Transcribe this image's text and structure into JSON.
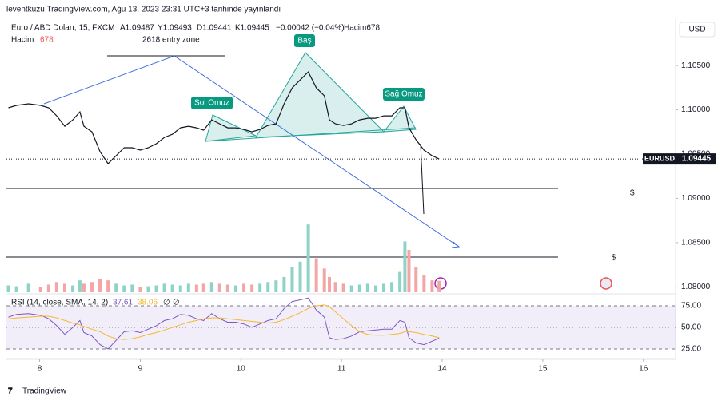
{
  "chart_data": {
    "type": "line",
    "published": "leventkuzu TradingView.com, Ağu 13, 2023 23:31 UTC+3 tarihinde yayınlandı",
    "symbol": "Euro / ABD Doları, 15, FXCM",
    "ohlc": [
      "A1.09487",
      "Y1.09493",
      "D1.09441",
      "K1.09445"
    ],
    "change": "−0.00042 (−0.04%)",
    "volume_header": "Hacim678",
    "volume_name": "Hacim",
    "currency": "USD",
    "ticker": "EURUSD",
    "last_label": "1.09445",
    "annotations": [
      "2618 entry zone",
      "Baş",
      "Sol Omuz",
      "Sağ Omuz",
      "$",
      "$"
    ],
    "logo": "TradingView",
    "xlim": [
      -0.33,
      6.32
    ],
    "xticks": [
      {
        "value": 0,
        "label": "8"
      },
      {
        "value": 1,
        "label": "9"
      },
      {
        "value": 2,
        "label": "10"
      },
      {
        "value": 3,
        "label": "11"
      },
      {
        "value": 4,
        "label": "14"
      },
      {
        "value": 5,
        "label": "15"
      },
      {
        "value": 6,
        "label": "16"
      }
    ],
    "ylim": [
      1.0794,
      1.1097
    ],
    "yticks": [
      {
        "value": 1.08,
        "label": "1.08000"
      },
      {
        "value": 1.085,
        "label": "1.08500"
      },
      {
        "value": 1.09,
        "label": "1.09000"
      },
      {
        "value": 1.095,
        "label": "1.09500"
      },
      {
        "value": 1.1,
        "label": "1.10000"
      },
      {
        "value": 1.105,
        "label": "1.10500"
      }
    ],
    "x": [
      -0.31,
      -0.23,
      -0.11,
      0.01,
      0.09,
      0.17,
      0.25,
      0.33,
      0.4,
      0.44,
      0.52,
      0.6,
      0.68,
      0.76,
      0.84,
      0.92,
      1.0,
      1.08,
      1.16,
      1.24,
      1.32,
      1.4,
      1.48,
      1.56,
      1.63,
      1.71,
      1.79,
      1.87,
      1.95,
      2.03,
      2.11,
      2.19,
      2.27,
      2.35,
      2.43,
      2.51,
      2.59,
      2.67,
      2.75,
      2.83,
      2.88,
      2.94,
      3.02,
      3.1,
      3.18,
      3.26,
      3.34,
      3.42,
      3.5,
      3.58,
      3.63,
      3.67,
      3.74,
      3.82,
      3.9,
      3.97
    ],
    "series": [
      {
        "name": "EURUSD",
        "color": "#131722",
        "values": [
          1.10023,
          1.1005,
          1.10068,
          1.1005,
          1.10023,
          1.09932,
          1.09815,
          1.09887,
          1.09977,
          1.09815,
          1.09752,
          1.09527,
          1.09392,
          1.09482,
          1.09572,
          1.09572,
          1.09545,
          1.09572,
          1.09617,
          1.09689,
          1.09725,
          1.09797,
          1.09815,
          1.09797,
          1.0977,
          1.09887,
          1.09842,
          1.09797,
          1.09797,
          1.09779,
          1.09752,
          1.09779,
          1.09824,
          1.09842,
          1.10068,
          1.10248,
          1.10338,
          1.10428,
          1.10248,
          1.10158,
          1.09887,
          1.09842,
          1.09824,
          1.09842,
          1.09887,
          1.09905,
          1.09905,
          1.09932,
          1.09932,
          1.10023,
          1.10023,
          1.09797,
          1.09662,
          1.09545,
          1.09482,
          1.09445
        ]
      }
    ],
    "volume": {
      "ylim": [
        0,
        5000
      ],
      "up_color": "#8fd3c7",
      "down_color": "#f4a6a6",
      "values": [
        400,
        350,
        500,
        300,
        450,
        600,
        500,
        400,
        700,
        500,
        600,
        800,
        700,
        500,
        400,
        450,
        300,
        350,
        400,
        500,
        450,
        400,
        500,
        450,
        500,
        600,
        500,
        450,
        400,
        500,
        450,
        500,
        600,
        700,
        900,
        1500,
        1800,
        4000,
        2000,
        1400,
        900,
        600,
        500,
        400,
        450,
        500,
        400,
        500,
        600,
        1200,
        3000,
        2500,
        1500,
        1000,
        700,
        678
      ]
    },
    "rsi": {
      "title": "RSI (14, close, SMA, 14, 2)",
      "flags": [
        "∅",
        "∅"
      ],
      "ylim": [
        17.6,
        85.2
      ],
      "yticks": [
        {
          "value": 25,
          "label": "25.00"
        },
        {
          "value": 50,
          "label": "50.00"
        },
        {
          "value": 75,
          "label": "75.00"
        }
      ],
      "series": [
        {
          "name": "RSI",
          "color": "#7e57c2",
          "values": [
            62,
            65,
            66,
            64,
            60,
            52,
            42,
            50,
            58,
            44,
            40,
            30,
            25,
            35,
            45,
            46,
            44,
            48,
            52,
            58,
            60,
            65,
            64,
            60,
            58,
            66,
            60,
            56,
            56,
            54,
            50,
            54,
            58,
            60,
            72,
            80,
            82,
            84,
            70,
            62,
            38,
            36,
            37,
            40,
            45,
            46,
            47,
            48,
            48,
            58,
            56,
            38,
            32,
            30,
            34,
            37.61
          ]
        },
        {
          "name": "SMA",
          "color": "#f5b72e",
          "values": [
            60,
            61,
            62,
            63,
            63,
            61,
            58,
            55,
            53,
            51,
            48,
            45,
            40,
            37,
            36,
            37,
            39,
            42,
            44,
            47,
            50,
            53,
            56,
            58,
            60,
            61,
            61,
            60,
            59,
            58,
            57,
            56,
            55,
            56,
            59,
            63,
            67,
            72,
            75,
            76,
            74,
            68,
            60,
            52,
            45,
            42,
            41,
            41,
            42,
            43,
            45,
            45,
            44,
            42,
            40,
            38.06
          ]
        }
      ]
    }
  }
}
